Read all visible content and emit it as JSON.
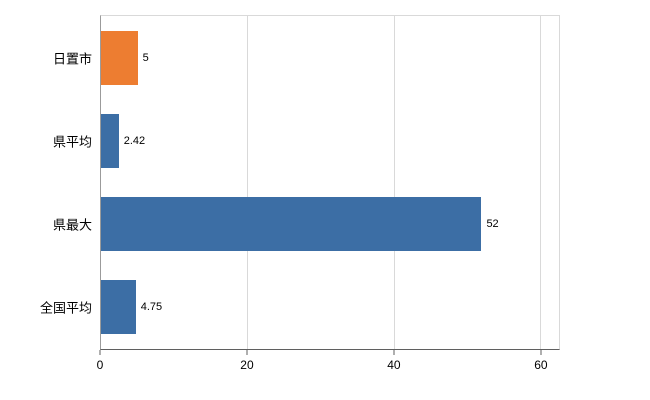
{
  "chart_data": {
    "type": "bar",
    "orientation": "horizontal",
    "title": "",
    "xlabel": "",
    "ylabel": "",
    "categories": [
      "日置市",
      "県平均",
      "県最大",
      "全国平均"
    ],
    "values": [
      5,
      2.42,
      52,
      4.75
    ],
    "value_labels": [
      "5",
      "2.42",
      "52",
      "4.75"
    ],
    "bar_colors": [
      "#ED7D31",
      "#3C6EA5",
      "#3C6EA5",
      "#3C6EA5"
    ],
    "x_ticks": [
      0,
      20,
      40,
      60
    ],
    "xlim": [
      0,
      62.6
    ],
    "grid": true,
    "legend": "none",
    "colors": {
      "highlight_bar": "#ED7D31",
      "default_bar": "#3C6EA5",
      "gridline": "#d9d9d9",
      "axis": "#5f5f5f"
    }
  }
}
